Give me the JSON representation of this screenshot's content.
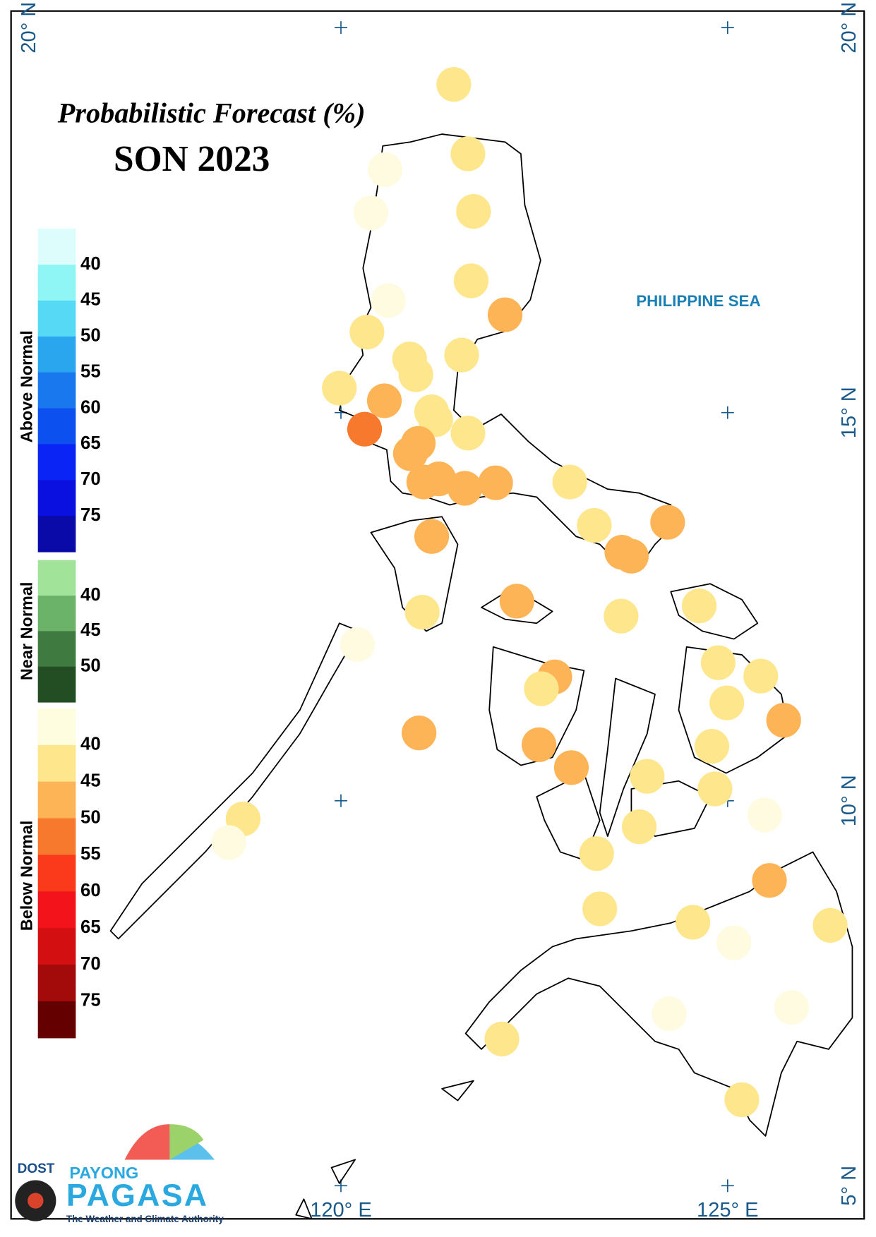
{
  "header": {
    "title": "Probabilistic Forecast (%)",
    "subtitle": "SON 2023"
  },
  "map": {
    "sea_label": "PHILIPPINE SEA",
    "lat_labels": {
      "top_left": "20° N",
      "top_right": "20° N",
      "right_15": "15° N",
      "right_10": "10° N",
      "right_5": "5° N"
    },
    "lon_labels": {
      "lon_120": "120° E",
      "lon_125": "125° E"
    }
  },
  "legend": {
    "above_normal": {
      "title": "Above Normal",
      "labels": [
        "40",
        "45",
        "50",
        "55",
        "60",
        "65",
        "70",
        "75"
      ]
    },
    "near_normal": {
      "title": "Near Normal",
      "labels": [
        "40",
        "45",
        "50"
      ]
    },
    "below_normal": {
      "title": "Below Normal",
      "labels": [
        "40",
        "45",
        "50",
        "55",
        "60",
        "65",
        "70",
        "75"
      ]
    }
  },
  "logo": {
    "agency": "DOST",
    "line1": "PAYONG",
    "line2": "PAGASA",
    "tagline": "The Weather and Climate Authority"
  }
}
